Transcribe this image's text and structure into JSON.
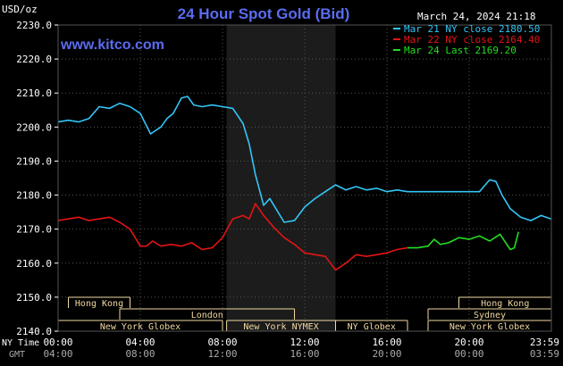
{
  "header": {
    "ylabel": "USD/oz",
    "title": "24 Hour Spot Gold (Bid)",
    "timestamp": "March 24, 2024 21:18",
    "watermark": "www.kitco.com"
  },
  "colors": {
    "background": "#000000",
    "title": "#5a6cf0",
    "grid": "#555555",
    "session_band": "#1c1c1c",
    "session_bar": "#f0d8a0",
    "series_mar21": "#33c5f5",
    "series_mar22": "#e41414",
    "series_mar24": "#22dd22",
    "text": "#ffffff",
    "gmt_text": "#aaaaaa"
  },
  "legend": [
    {
      "label": "Mar 21 NY close 2180.50",
      "color": "#33c5f5"
    },
    {
      "label": "Mar 22 NY close 2164.40",
      "color": "#e41414"
    },
    {
      "label": "Mar 24 Last 2169.20",
      "color": "#22dd22"
    }
  ],
  "axis": {
    "x_row1_label": "NY Time",
    "x_row2_label": "GMT",
    "x_ticks_ny": [
      "00:00",
      "04:00",
      "08:00",
      "12:00",
      "16:00",
      "20:00",
      "23:59"
    ],
    "x_ticks_gmt": [
      "04:00",
      "08:00",
      "12:00",
      "16:00",
      "20:00",
      "00:00",
      "03:59"
    ],
    "y_ticks": [
      "2230.0",
      "2220.0",
      "2210.0",
      "2200.0",
      "2190.0",
      "2180.0",
      "2170.0",
      "2160.0",
      "2150.0",
      "2140.0"
    ]
  },
  "sessions": [
    {
      "label": "Hong Kong",
      "start": 0.5,
      "end": 3.5,
      "row": 0
    },
    {
      "label": "Hong Kong",
      "start": 19.5,
      "end": 24,
      "row": 0
    },
    {
      "label": "London",
      "start": 3.0,
      "end": 11.5,
      "row": 1
    },
    {
      "label": "Sydney",
      "start": 18.0,
      "end": 24,
      "row": 1
    },
    {
      "label": "New York Globex",
      "start": 0,
      "end": 8,
      "row": 2
    },
    {
      "label": "New York NYMEX",
      "start": 8.2,
      "end": 13.5,
      "row": 2
    },
    {
      "label": "NY Globex",
      "start": 13.5,
      "end": 17.0,
      "row": 2
    },
    {
      "label": "New York Globex",
      "start": 18.0,
      "end": 24,
      "row": 2
    }
  ],
  "chart_data": {
    "type": "line",
    "title": "24 Hour Spot Gold (Bid)",
    "ylabel": "USD/oz",
    "xlabel": "NY Time",
    "xlim": [
      0,
      24
    ],
    "ylim": [
      2140,
      2230
    ],
    "highlight_range": [
      8.2,
      13.5
    ],
    "series": [
      {
        "name": "Mar 21 NY close 2180.50",
        "color": "#33c5f5",
        "x": [
          0,
          0.5,
          1,
          1.5,
          2,
          2.5,
          3,
          3.5,
          4,
          4.5,
          5,
          5.3,
          5.6,
          6,
          6.3,
          6.6,
          7,
          7.5,
          8,
          8.5,
          9,
          9.3,
          9.6,
          10,
          10.3,
          10.6,
          11,
          11.5,
          12,
          12.5,
          13,
          13.5,
          14,
          14.5,
          15,
          15.5,
          16,
          16.5,
          17,
          17.5,
          18,
          18.5,
          19,
          19.5,
          20,
          20.5,
          21,
          21.3,
          21.6,
          22,
          22.5,
          23,
          23.5,
          23.98
        ],
        "values": [
          2201.5,
          2202.0,
          2201.5,
          2202.5,
          2206.0,
          2205.5,
          2207.0,
          2206.0,
          2204.0,
          2198.0,
          2200.0,
          2202.5,
          2204.0,
          2208.5,
          2209.0,
          2206.5,
          2206.0,
          2206.5,
          2206.0,
          2205.5,
          2201.0,
          2195.0,
          2186.0,
          2177.0,
          2179.0,
          2176.0,
          2172.0,
          2172.5,
          2176.5,
          2179.0,
          2181.0,
          2183.0,
          2181.5,
          2182.5,
          2181.5,
          2182.0,
          2181.0,
          2181.5,
          2181.0,
          2181.0,
          2181.0,
          2181.0,
          2181.0,
          2181.0,
          2181.0,
          2181.0,
          2184.5,
          2184.0,
          2180.0,
          2176.0,
          2173.5,
          2172.5,
          2174.0,
          2173.0
        ]
      },
      {
        "name": "Mar 22 NY close 2164.40",
        "color": "#e41414",
        "x": [
          0,
          0.5,
          1,
          1.5,
          2,
          2.5,
          3,
          3.5,
          4,
          4.3,
          4.6,
          5,
          5.5,
          6,
          6.5,
          7,
          7.5,
          8,
          8.5,
          9,
          9.3,
          9.6,
          10,
          10.5,
          11,
          11.5,
          12,
          12.5,
          13,
          13.5,
          14,
          14.5,
          15,
          15.5,
          16,
          16.5,
          17
        ],
        "values": [
          2172.5,
          2173.0,
          2173.5,
          2172.5,
          2173.0,
          2173.5,
          2172.0,
          2170.0,
          2165.0,
          2165.0,
          2166.5,
          2165.0,
          2165.5,
          2165.0,
          2166.0,
          2164.0,
          2164.5,
          2167.5,
          2173.0,
          2174.0,
          2173.0,
          2177.5,
          2174.0,
          2170.5,
          2167.5,
          2165.5,
          2163.0,
          2162.5,
          2162.0,
          2158.0,
          2160.0,
          2162.5,
          2162.0,
          2162.5,
          2163.0,
          2164.0,
          2164.5
        ]
      },
      {
        "name": "Mar 24 Last 2169.20",
        "color": "#22dd22",
        "x": [
          17.0,
          17.5,
          18.0,
          18.3,
          18.6,
          19.0,
          19.5,
          20.0,
          20.5,
          21.0,
          21.5,
          22.0,
          22.2,
          22.4
        ],
        "values": [
          2164.5,
          2164.5,
          2165.0,
          2167.0,
          2165.5,
          2166.0,
          2167.5,
          2167.0,
          2168.0,
          2166.5,
          2168.5,
          2164.0,
          2164.5,
          2169.2
        ]
      }
    ]
  }
}
